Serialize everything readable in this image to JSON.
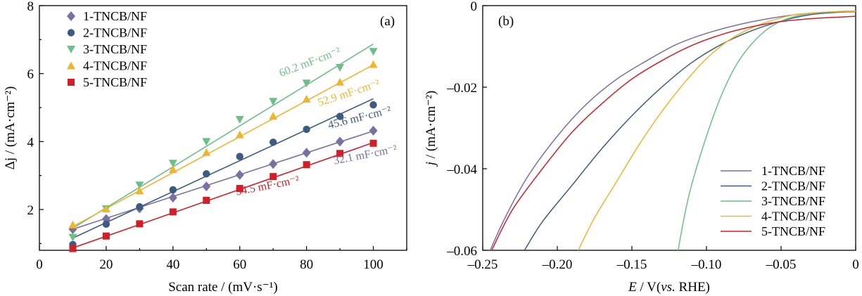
{
  "chart_data": [
    {
      "type": "scatter",
      "panel_label": "(a)",
      "xlabel": "Scan rate / (mV·s⁻¹)",
      "ylabel": "Δj / (mA·cm⁻²)",
      "xlim": [
        0,
        110
      ],
      "ylim": [
        0.8,
        8
      ],
      "xticks": [
        0,
        20,
        40,
        60,
        80,
        100
      ],
      "yticks": [
        2,
        4,
        6,
        8
      ],
      "legend_position": "top-left",
      "series": [
        {
          "name": "1-TNCB/NF",
          "marker": "diamond",
          "color": "#7b6fa3",
          "x": [
            10,
            20,
            30,
            40,
            50,
            60,
            70,
            80,
            90,
            100
          ],
          "y": [
            1.42,
            1.72,
            2.03,
            2.35,
            2.68,
            3.02,
            3.34,
            3.67,
            4.0,
            4.32
          ],
          "fit": [
            [
              10,
              1.42
            ],
            [
              100,
              4.31
            ]
          ],
          "annotation": "32.1 mF·cm⁻²"
        },
        {
          "name": "2-TNCB/NF",
          "marker": "circle",
          "color": "#3d5a80",
          "x": [
            10,
            20,
            30,
            40,
            50,
            60,
            70,
            80,
            90,
            100
          ],
          "y": [
            0.97,
            1.57,
            2.08,
            2.58,
            3.05,
            3.56,
            3.98,
            4.36,
            4.74,
            5.08
          ],
          "fit": [
            [
              10,
              1.16
            ],
            [
              100,
              5.26
            ]
          ],
          "annotation": "45.6 mF·cm⁻²"
        },
        {
          "name": "3-TNCB/NF",
          "marker": "triangle-down",
          "color": "#6dbf8a",
          "x": [
            10,
            20,
            30,
            40,
            50,
            60,
            70,
            80,
            90,
            100
          ],
          "y": [
            1.18,
            2.02,
            2.72,
            3.36,
            4.0,
            4.65,
            5.18,
            5.72,
            6.18,
            6.65
          ],
          "fit": [
            [
              10,
              1.45
            ],
            [
              100,
              6.87
            ]
          ],
          "annotation": "60.2 mF·cm⁻²"
        },
        {
          "name": "4-TNCB/NF",
          "marker": "triangle-up",
          "color": "#f0b530",
          "x": [
            10,
            20,
            30,
            40,
            50,
            60,
            70,
            80,
            90,
            100
          ],
          "y": [
            1.55,
            2.02,
            2.55,
            3.18,
            3.68,
            4.2,
            4.75,
            5.25,
            5.75,
            6.27
          ],
          "fit": [
            [
              10,
              1.5
            ],
            [
              100,
              6.26
            ]
          ],
          "annotation": "52.9 mF·cm⁻²"
        },
        {
          "name": "5-TNCB/NF",
          "marker": "square",
          "color": "#d11f2a",
          "x": [
            10,
            20,
            30,
            40,
            50,
            60,
            70,
            80,
            90,
            100
          ],
          "y": [
            0.85,
            1.22,
            1.58,
            1.93,
            2.27,
            2.62,
            2.97,
            3.32,
            3.65,
            3.95
          ],
          "fit": [
            [
              10,
              0.87
            ],
            [
              100,
              3.97
            ]
          ],
          "annotation": "34.5 mF·cm⁻²"
        }
      ]
    },
    {
      "type": "line",
      "panel_label": "(b)",
      "xlabel_italic": "E",
      "xlabel_rest": " / V(",
      "xlabel_italic2": "vs.",
      "xlabel_end": " RHE)",
      "ylabel_italic": "j",
      "ylabel_rest": " / (mA·cm⁻²)",
      "xlim": [
        -0.25,
        0
      ],
      "ylim": [
        -0.06,
        0
      ],
      "xticks": [
        -0.25,
        -0.2,
        -0.15,
        -0.1,
        -0.05,
        0
      ],
      "xtick_labels": [
        "–0.25",
        "–0.20",
        "–0.15",
        "–0.10",
        "–0.05",
        "0"
      ],
      "yticks": [
        -0.06,
        -0.04,
        -0.02,
        0
      ],
      "ytick_labels": [
        "–0.06",
        "–0.04",
        "–0.02",
        "0"
      ],
      "legend_position": "bottom-right",
      "series": [
        {
          "name": "1-TNCB/NF",
          "color": "#7b6fa3",
          "x": [
            -0.245,
            -0.235,
            -0.22,
            -0.2,
            -0.18,
            -0.16,
            -0.14,
            -0.12,
            -0.1,
            -0.08,
            -0.06,
            -0.04,
            -0.02,
            0
          ],
          "y": [
            -0.06,
            -0.052,
            -0.042,
            -0.032,
            -0.024,
            -0.018,
            -0.0135,
            -0.0095,
            -0.0068,
            -0.0048,
            -0.0033,
            -0.0022,
            -0.0016,
            -0.0014
          ]
        },
        {
          "name": "2-TNCB/NF",
          "color": "#3d5a80",
          "x": [
            -0.222,
            -0.21,
            -0.19,
            -0.17,
            -0.15,
            -0.13,
            -0.11,
            -0.09,
            -0.07,
            -0.05,
            -0.03,
            -0.01,
            0
          ],
          "y": [
            -0.06,
            -0.053,
            -0.044,
            -0.035,
            -0.027,
            -0.02,
            -0.014,
            -0.0095,
            -0.0062,
            -0.0038,
            -0.0022,
            -0.0016,
            -0.0015
          ]
        },
        {
          "name": "3-TNCB/NF",
          "color": "#6dbf8a",
          "x": [
            -0.119,
            -0.115,
            -0.11,
            -0.1,
            -0.09,
            -0.08,
            -0.07,
            -0.06,
            -0.05,
            -0.04,
            -0.03,
            -0.02,
            -0.01,
            0
          ],
          "y": [
            -0.06,
            -0.052,
            -0.044,
            -0.032,
            -0.022,
            -0.0145,
            -0.0095,
            -0.006,
            -0.0038,
            -0.0026,
            -0.0019,
            -0.0016,
            -0.0014,
            -0.0013
          ]
        },
        {
          "name": "4-TNCB/NF",
          "color": "#f0b530",
          "x": [
            -0.186,
            -0.175,
            -0.16,
            -0.145,
            -0.13,
            -0.115,
            -0.1,
            -0.085,
            -0.07,
            -0.055,
            -0.04,
            -0.02,
            0
          ],
          "y": [
            -0.06,
            -0.052,
            -0.043,
            -0.034,
            -0.026,
            -0.019,
            -0.013,
            -0.0085,
            -0.0055,
            -0.0035,
            -0.0022,
            -0.0016,
            -0.0014
          ]
        },
        {
          "name": "5-TNCB/NF",
          "color": "#d11f2a",
          "x": [
            -0.244,
            -0.23,
            -0.21,
            -0.19,
            -0.17,
            -0.15,
            -0.13,
            -0.11,
            -0.09,
            -0.07,
            -0.05,
            -0.03,
            -0.01,
            0
          ],
          "y": [
            -0.06,
            -0.05,
            -0.04,
            -0.031,
            -0.024,
            -0.018,
            -0.0135,
            -0.0098,
            -0.0071,
            -0.0052,
            -0.0039,
            -0.0032,
            -0.0028,
            -0.0026
          ]
        }
      ]
    }
  ]
}
